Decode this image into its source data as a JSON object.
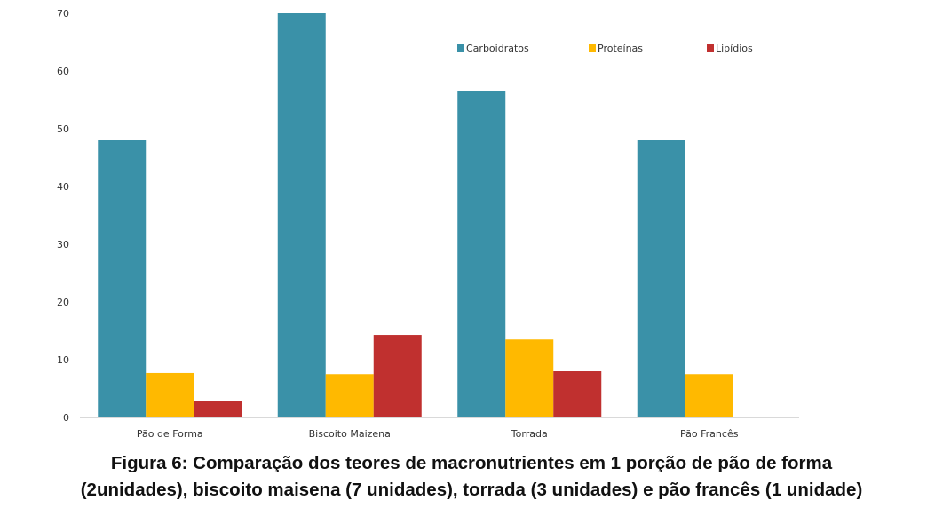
{
  "chart_data": {
    "type": "bar",
    "categories": [
      "Pão de Forma",
      "Biscoito Maizena",
      "Torrada",
      "Pão Francês"
    ],
    "series": [
      {
        "name": "Carboidratos",
        "color": "#3A91A8",
        "values": [
          48,
          70,
          56.6,
          48
        ]
      },
      {
        "name": "Proteínas",
        "color": "#FFB900",
        "values": [
          7.7,
          7.5,
          13.5,
          7.5
        ]
      },
      {
        "name": "Lipídios",
        "color": "#C0302F",
        "values": [
          2.9,
          14.3,
          8,
          null
        ]
      }
    ],
    "ylim": [
      0,
      70
    ],
    "yticks": [
      "0",
      "10",
      "20",
      "30",
      "40",
      "50",
      "60",
      "70"
    ],
    "ytick_values": [
      0,
      10,
      20,
      30,
      40,
      50,
      60,
      70
    ],
    "grid": false,
    "legend_position": "top-right",
    "title": "",
    "xlabel": "",
    "ylabel": ""
  },
  "caption": {
    "line1": "Figura 6: Comparação dos teores de macronutrientes em 1 porção de pão de forma",
    "line2": "(2unidades), biscoito maisena (7 unidades), torrada (3 unidades) e pão francês (1 unidade)"
  }
}
